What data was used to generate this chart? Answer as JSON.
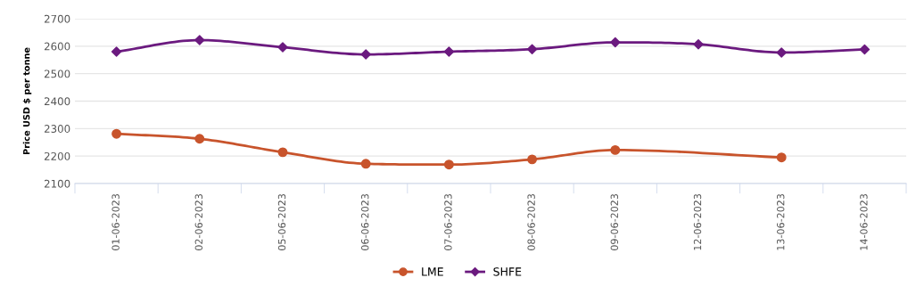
{
  "chart_data": {
    "type": "line",
    "ylabel": "Price USD $ per tonne",
    "categories": [
      "01-06-2023",
      "02-06-2023",
      "05-06-2023",
      "06-06-2023",
      "07-06-2023",
      "08-06-2023",
      "09-06-2023",
      "12-06-2023",
      "13-06-2023",
      "14-06-2023"
    ],
    "series": [
      {
        "name": "LME",
        "color": "#c8542c",
        "marker": "circle",
        "values": [
          2281,
          2263,
          2214,
          2172,
          2169,
          2188,
          2222,
          null,
          2195,
          null
        ]
      },
      {
        "name": "SHFE",
        "color": "#6b1a7f",
        "marker": "diamond",
        "values": [
          2580,
          2622,
          2596,
          2570,
          2580,
          2589,
          2614,
          2607,
          2577,
          2588
        ]
      }
    ],
    "ylim": [
      2100,
      2700
    ],
    "yticks": [
      2100,
      2200,
      2300,
      2400,
      2500,
      2600,
      2700
    ],
    "grid": "y",
    "legend": "bottom"
  }
}
